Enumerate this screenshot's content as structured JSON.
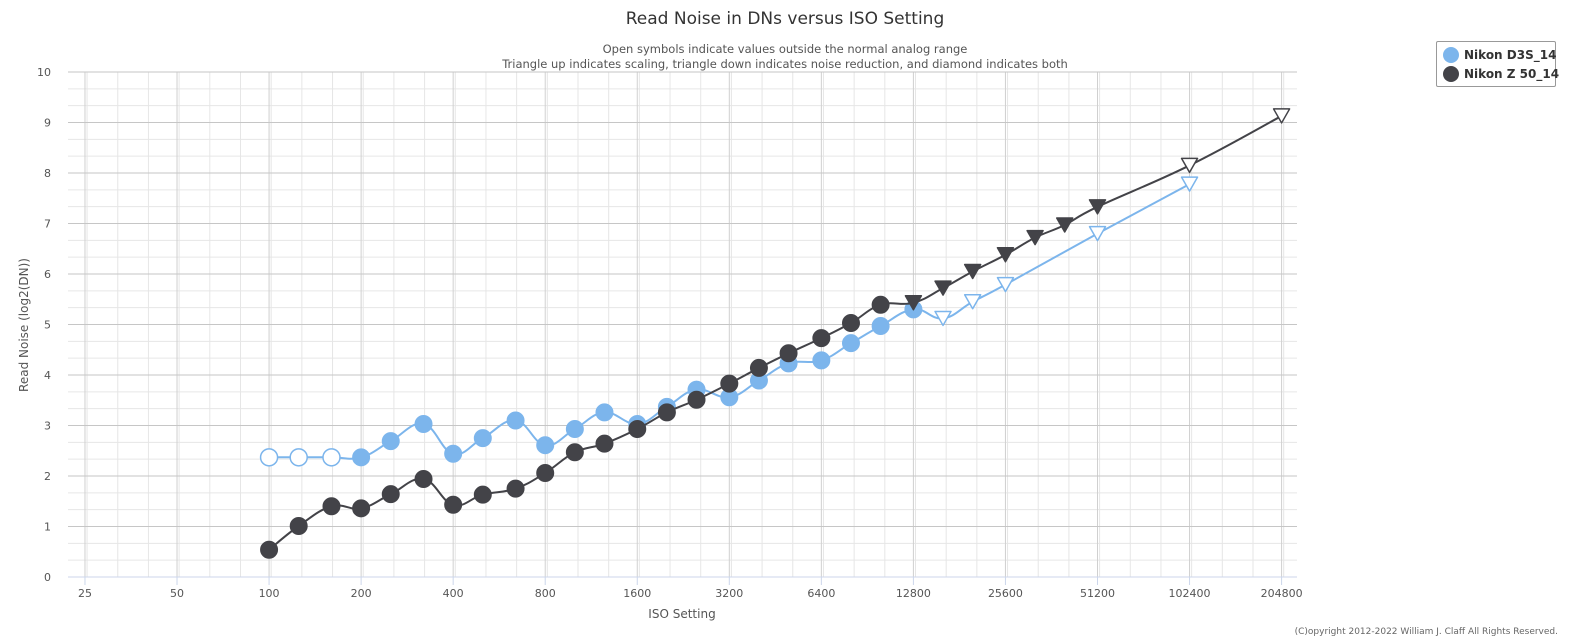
{
  "chart_data": {
    "type": "line",
    "title": "Read Noise in DNs versus ISO Setting",
    "subtitle": [
      "Open symbols indicate values outside the normal analog range",
      "Triangle up indicates scaling, triangle down indicates noise reduction, and diamond indicates both"
    ],
    "xlabel": "ISO Setting",
    "ylabel": "Read Noise (log2(DN))",
    "x_scale": "log2",
    "xlim": [
      22,
      230000
    ],
    "ylim": [
      0,
      10
    ],
    "x_ticks": [
      25,
      50,
      100,
      200,
      400,
      800,
      1600,
      3200,
      6400,
      12800,
      25600,
      51200,
      102400,
      204800
    ],
    "x_tick_labels": [
      "25",
      "50",
      "100",
      "200",
      "400",
      "800",
      "1600",
      "3200",
      "6400",
      "12800",
      "25600",
      "51200",
      "102400",
      "204800"
    ],
    "y_ticks": [
      0,
      1,
      2,
      3,
      4,
      5,
      6,
      7,
      8,
      9,
      10
    ],
    "y_tick_labels": [
      "0",
      "1",
      "2",
      "3",
      "4",
      "5",
      "6",
      "7",
      "8",
      "9",
      "10"
    ],
    "grid": true,
    "legend_position": "top-right",
    "series": [
      {
        "name": "Nikon D3S_14",
        "color": "#7cb5ec",
        "points": [
          {
            "x": 100,
            "y": 2.37,
            "marker": "circle-open"
          },
          {
            "x": 125,
            "y": 2.37,
            "marker": "circle-open"
          },
          {
            "x": 160,
            "y": 2.37,
            "marker": "circle-open"
          },
          {
            "x": 200,
            "y": 2.37,
            "marker": "circle"
          },
          {
            "x": 250,
            "y": 2.69,
            "marker": "circle"
          },
          {
            "x": 320,
            "y": 3.03,
            "marker": "circle"
          },
          {
            "x": 400,
            "y": 2.44,
            "marker": "circle"
          },
          {
            "x": 500,
            "y": 2.75,
            "marker": "circle"
          },
          {
            "x": 640,
            "y": 3.1,
            "marker": "circle"
          },
          {
            "x": 800,
            "y": 2.61,
            "marker": "circle"
          },
          {
            "x": 1000,
            "y": 2.93,
            "marker": "circle"
          },
          {
            "x": 1250,
            "y": 3.26,
            "marker": "circle"
          },
          {
            "x": 1600,
            "y": 3.03,
            "marker": "circle"
          },
          {
            "x": 2000,
            "y": 3.37,
            "marker": "circle"
          },
          {
            "x": 2500,
            "y": 3.71,
            "marker": "circle"
          },
          {
            "x": 3200,
            "y": 3.56,
            "marker": "circle"
          },
          {
            "x": 4000,
            "y": 3.89,
            "marker": "circle"
          },
          {
            "x": 5000,
            "y": 4.23,
            "marker": "circle"
          },
          {
            "x": 6400,
            "y": 4.29,
            "marker": "circle"
          },
          {
            "x": 8000,
            "y": 4.63,
            "marker": "circle"
          },
          {
            "x": 10000,
            "y": 4.97,
            "marker": "circle"
          },
          {
            "x": 12800,
            "y": 5.3,
            "marker": "circle"
          },
          {
            "x": 16000,
            "y": 5.12,
            "marker": "triangle-down-open"
          },
          {
            "x": 20000,
            "y": 5.45,
            "marker": "triangle-down-open"
          },
          {
            "x": 25600,
            "y": 5.79,
            "marker": "triangle-down-open"
          },
          {
            "x": 51200,
            "y": 6.8,
            "marker": "triangle-down-open"
          },
          {
            "x": 102400,
            "y": 7.78,
            "marker": "triangle-down-open"
          }
        ]
      },
      {
        "name": "Nikon Z 50_14",
        "color": "#434348",
        "points": [
          {
            "x": 100,
            "y": 0.54,
            "marker": "circle"
          },
          {
            "x": 125,
            "y": 1.01,
            "marker": "circle"
          },
          {
            "x": 160,
            "y": 1.4,
            "marker": "circle"
          },
          {
            "x": 200,
            "y": 1.36,
            "marker": "circle"
          },
          {
            "x": 250,
            "y": 1.64,
            "marker": "circle"
          },
          {
            "x": 320,
            "y": 1.94,
            "marker": "circle"
          },
          {
            "x": 400,
            "y": 1.43,
            "marker": "circle"
          },
          {
            "x": 500,
            "y": 1.63,
            "marker": "circle"
          },
          {
            "x": 640,
            "y": 1.75,
            "marker": "circle"
          },
          {
            "x": 800,
            "y": 2.06,
            "marker": "circle"
          },
          {
            "x": 1000,
            "y": 2.47,
            "marker": "circle"
          },
          {
            "x": 1250,
            "y": 2.64,
            "marker": "circle"
          },
          {
            "x": 1600,
            "y": 2.93,
            "marker": "circle"
          },
          {
            "x": 2000,
            "y": 3.26,
            "marker": "circle"
          },
          {
            "x": 2500,
            "y": 3.51,
            "marker": "circle"
          },
          {
            "x": 3200,
            "y": 3.83,
            "marker": "circle"
          },
          {
            "x": 4000,
            "y": 4.14,
            "marker": "circle"
          },
          {
            "x": 5000,
            "y": 4.43,
            "marker": "circle"
          },
          {
            "x": 6400,
            "y": 4.73,
            "marker": "circle"
          },
          {
            "x": 8000,
            "y": 5.03,
            "marker": "circle"
          },
          {
            "x": 10000,
            "y": 5.39,
            "marker": "circle"
          },
          {
            "x": 12800,
            "y": 5.43,
            "marker": "triangle-down"
          },
          {
            "x": 16000,
            "y": 5.72,
            "marker": "triangle-down"
          },
          {
            "x": 20000,
            "y": 6.05,
            "marker": "triangle-down"
          },
          {
            "x": 25600,
            "y": 6.38,
            "marker": "triangle-down"
          },
          {
            "x": 32000,
            "y": 6.72,
            "marker": "triangle-down"
          },
          {
            "x": 40000,
            "y": 6.97,
            "marker": "triangle-down"
          },
          {
            "x": 51200,
            "y": 7.33,
            "marker": "triangle-down"
          },
          {
            "x": 102400,
            "y": 8.15,
            "marker": "triangle-down-open"
          },
          {
            "x": 204800,
            "y": 9.13,
            "marker": "triangle-down-open"
          }
        ]
      }
    ],
    "credit": "(C)opyright 2012-2022 William J. Claff All Rights Reserved."
  }
}
